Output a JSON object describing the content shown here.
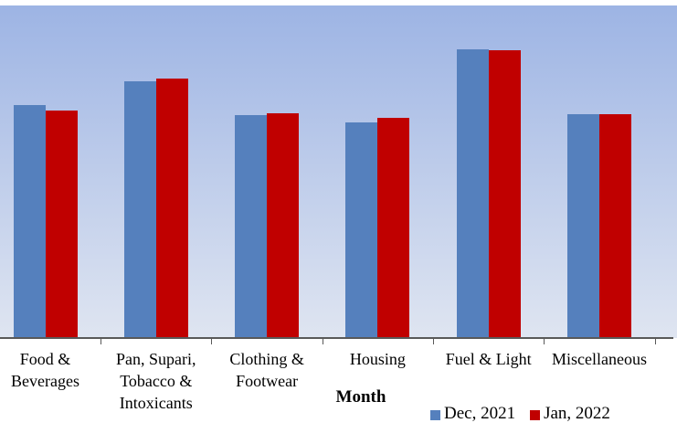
{
  "chart_data": {
    "type": "bar",
    "title": "",
    "xlabel": "Month",
    "ylabel": "",
    "y_axis": "none (no scale or gridlines shown; values are relative bar heights in px)",
    "categories": [
      "Food & Beverages",
      "Pan, Supari, Tobacco & Intoxicants",
      "Clothing & Footwear",
      "Housing",
      "Fuel & Light",
      "Miscellaneous"
    ],
    "series": [
      {
        "name": "Dec, 2021",
        "color": "#5580bd",
        "values": [
          255,
          281,
          244,
          236,
          316,
          245
        ]
      },
      {
        "name": "Jan, 2022",
        "color": "#c00000",
        "values": [
          249,
          284,
          246,
          241,
          315,
          245
        ]
      }
    ],
    "legend_position": "bottom-right",
    "legend_labels": [
      "Dec, 2021",
      "Jan, 2022"
    ],
    "plot_background_top": "#9db4e4",
    "plot_background_bottom": "#dfe5f1",
    "axis_color": "#595959",
    "grid": "off"
  }
}
